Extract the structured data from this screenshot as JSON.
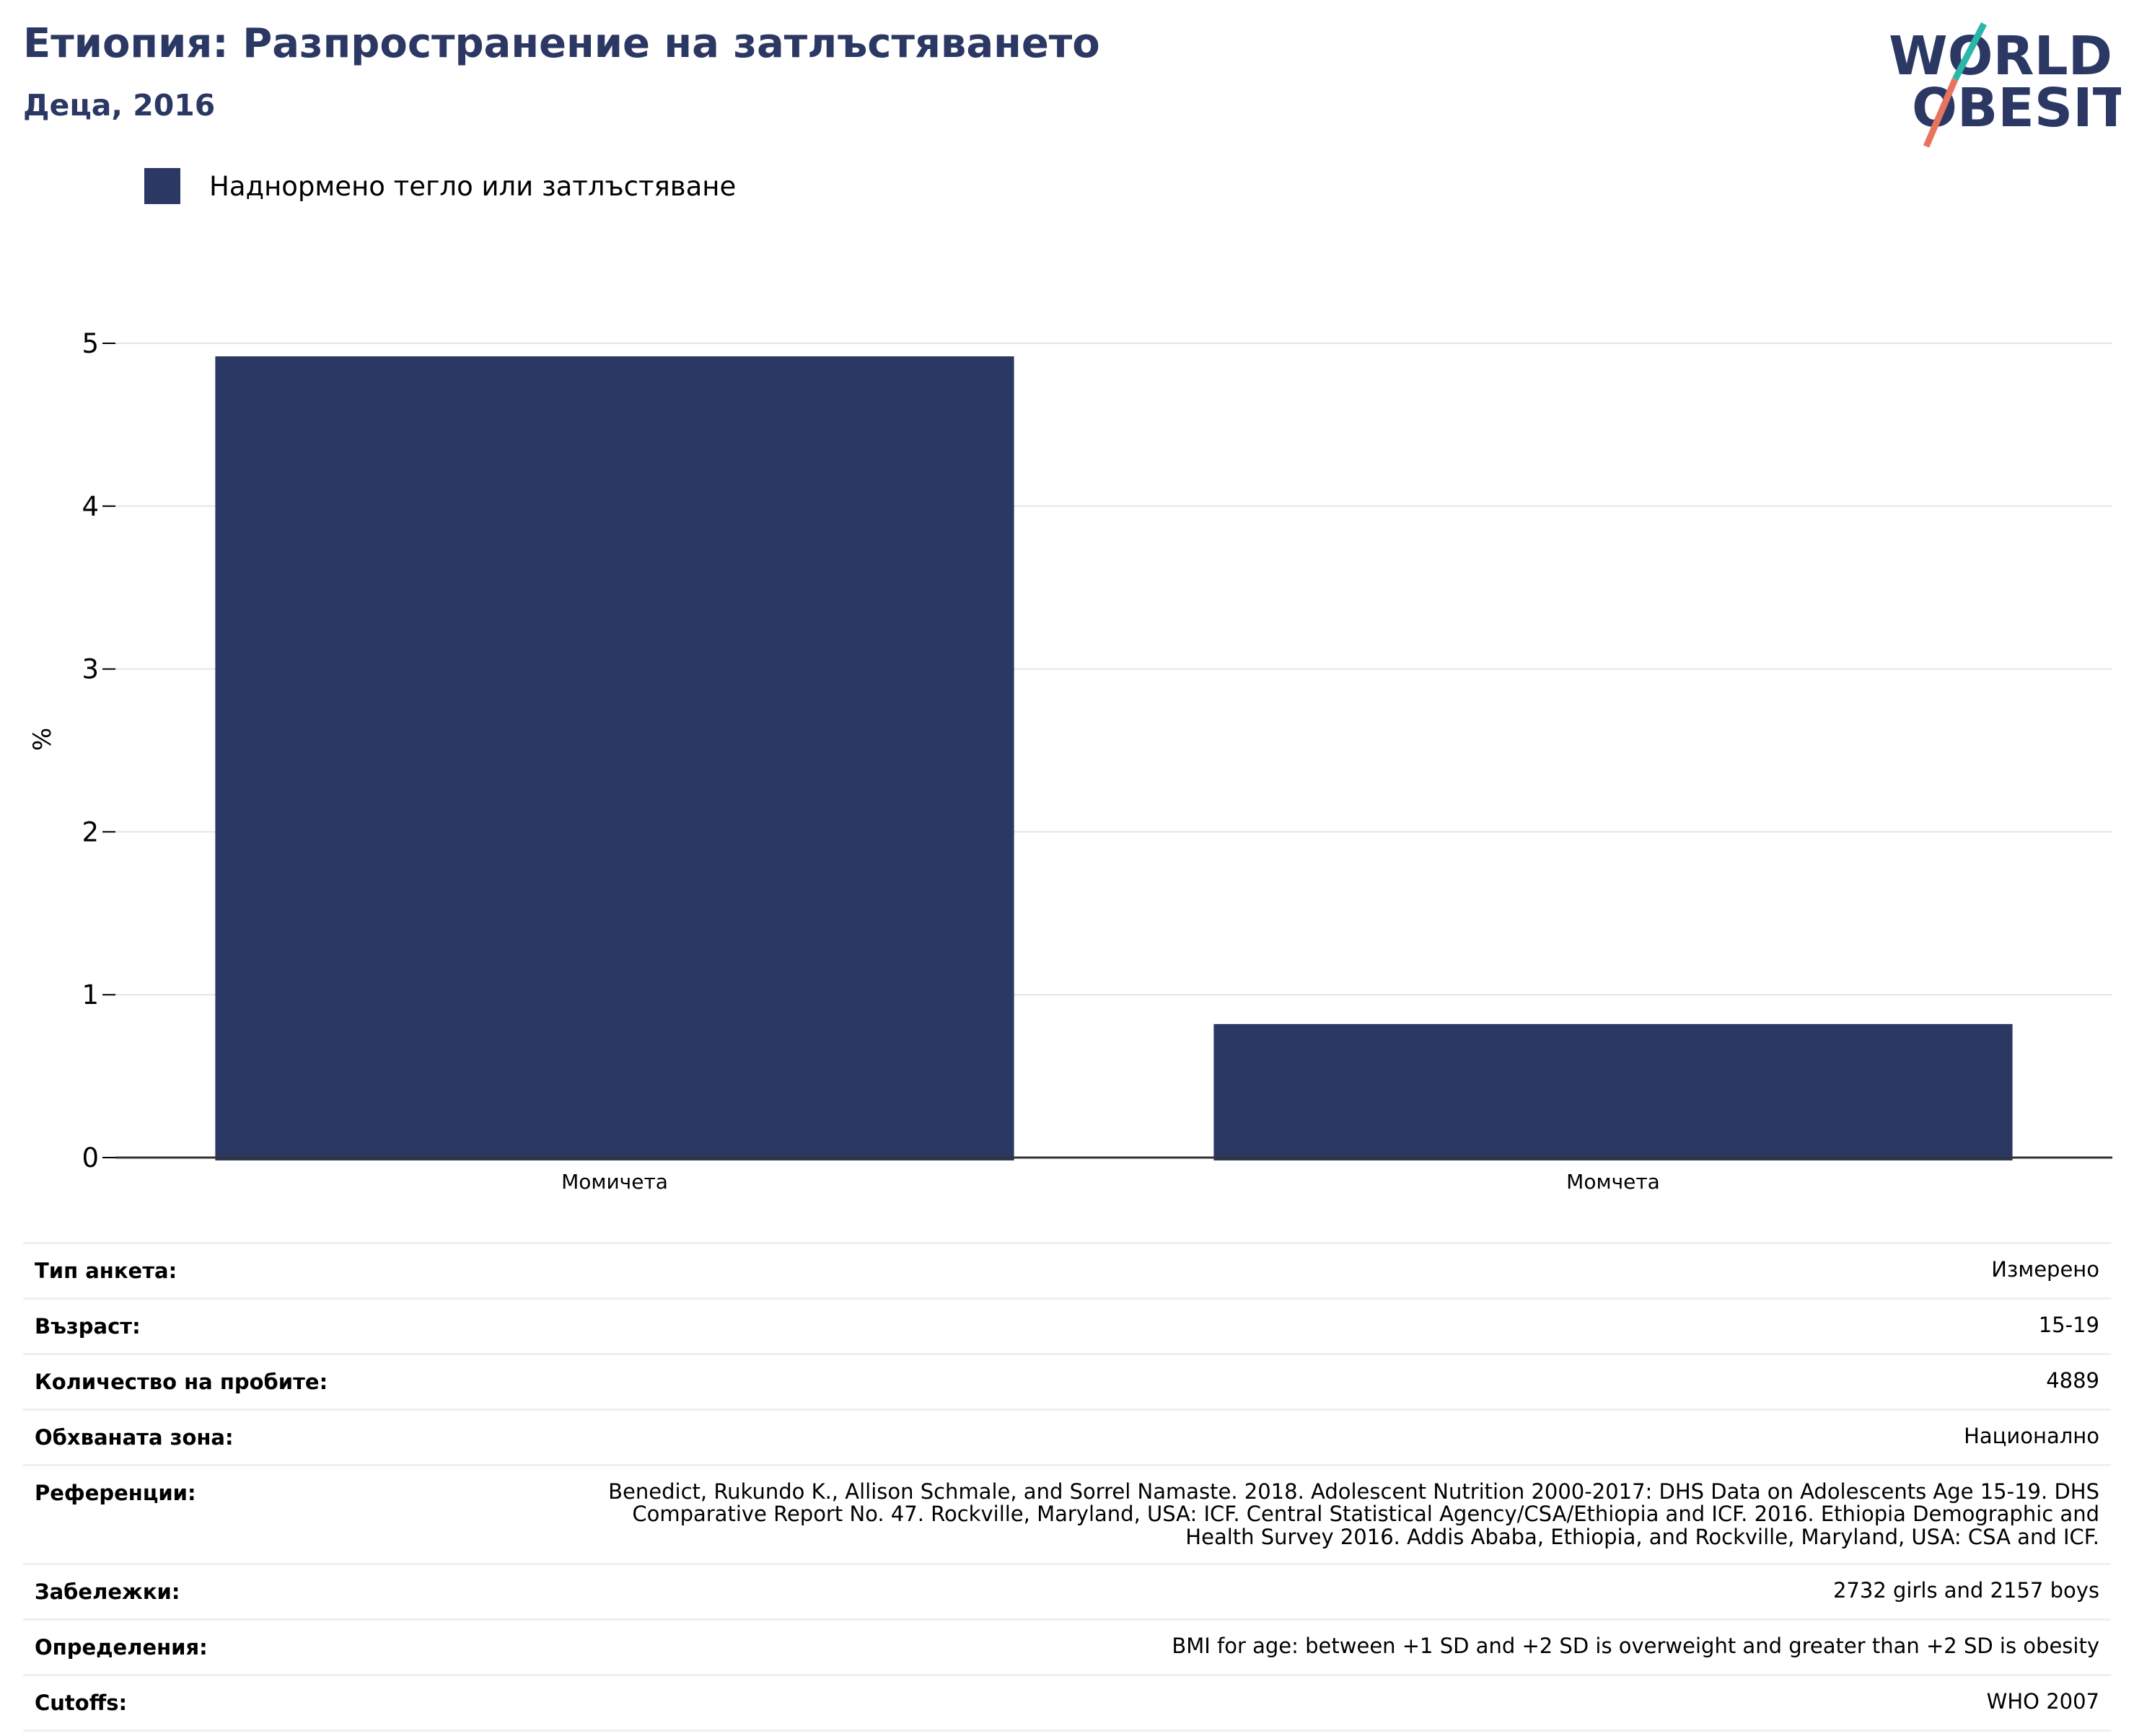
{
  "header": {
    "title": "Етиопия: Разпространение на затлъстяването",
    "subtitle": "Деца, 2016",
    "logo_text": [
      "WORLD",
      "OBESITY"
    ]
  },
  "legend": {
    "label": "Наднормено тегло или затлъстяване",
    "color": "#2c3864"
  },
  "chart_data": {
    "type": "bar",
    "categories": [
      "Момичета",
      "Момчета"
    ],
    "series": [
      {
        "name": "Наднормено тегло или затлъстяване",
        "values": [
          4.92,
          0.82
        ],
        "color": "#2c3864"
      }
    ],
    "ylabel": "%",
    "ylim": [
      0,
      5
    ],
    "yticks": [
      0,
      1,
      2,
      3,
      4,
      5
    ],
    "grid": true,
    "legend_position": "top-left"
  },
  "metadata": [
    {
      "key": "Тип анкета:",
      "value": "Измерено"
    },
    {
      "key": "Възраст:",
      "value": "15-19"
    },
    {
      "key": "Количество на пробите:",
      "value": "4889"
    },
    {
      "key": "Обхваната зона:",
      "value": "Национално"
    },
    {
      "key": "Референции:",
      "value": "Benedict, Rukundo K., Allison Schmale, and Sorrel Namaste. 2018. Adolescent Nutrition 2000-2017: DHS Data on Adolescents Age 15-19. DHS Comparative Report No. 47. Rockville, Maryland, USA: ICF. Central Statistical Agency/CSA/Ethiopia and ICF. 2016. Ethiopia Demographic and Health Survey 2016. Addis Ababa, Ethiopia, and Rockville, Maryland, USA: CSA and ICF."
    },
    {
      "key": "Забележки:",
      "value": "2732 girls and 2157 boys"
    },
    {
      "key": "Определения:",
      "value": "BMI for age: between +1 SD and +2 SD is overweight and greater than +2 SD is obesity"
    },
    {
      "key": "Cutoffs:",
      "value": "WHO 2007"
    }
  ]
}
